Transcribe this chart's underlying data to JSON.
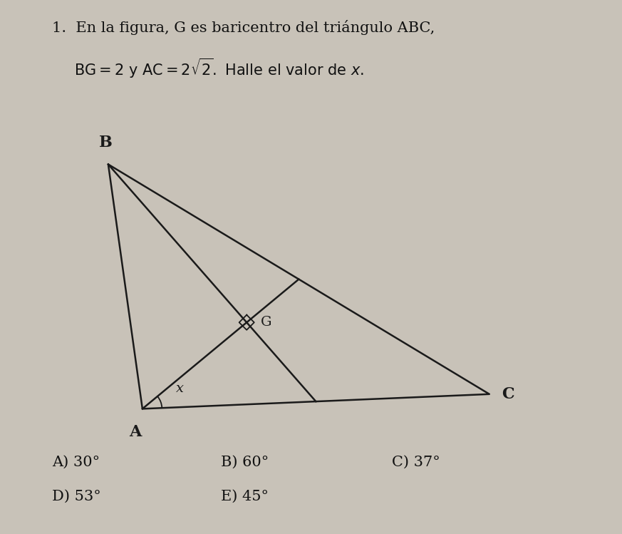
{
  "background_color": "#c8c2b8",
  "title_line1": "1.  En la figura, G es baricentro del triángulo ABC,",
  "title_line2_math": "BG = 2 y AC = 2\\sqrt{2}. Halle el valor de $x$.",
  "title_fontsize": 15,
  "B": [
    2.0,
    7.5
  ],
  "A": [
    2.7,
    2.5
  ],
  "C": [
    9.8,
    2.8
  ],
  "answer_A": "A) 30°",
  "answer_B": "B) 60°",
  "answer_C": "C) 37°",
  "answer_D": "D) 53°",
  "answer_E": "E) 45°",
  "answer_fontsize": 15,
  "label_fontsize": 14,
  "line_color": "#1a1a1a",
  "line_width": 1.8
}
